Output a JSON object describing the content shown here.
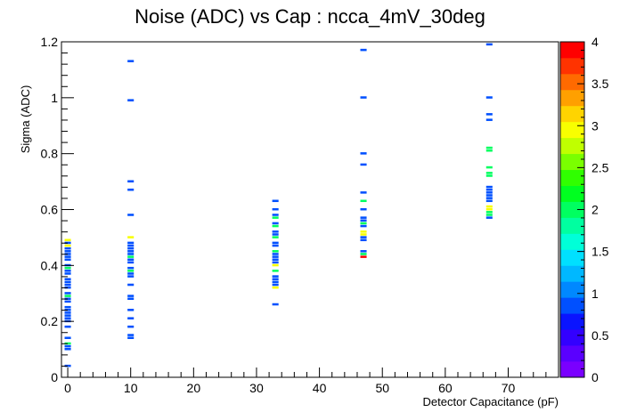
{
  "chart_data": {
    "type": "heatmap",
    "title": "Noise (ADC) vs Cap : ncca_4mV_30deg",
    "xlabel": "Detector Capacitance (pF)",
    "ylabel": "Sigma (ADC)",
    "xlim": [
      -1,
      78
    ],
    "ylim": [
      0,
      1.2
    ],
    "x_ticks": [
      0,
      10,
      20,
      30,
      40,
      50,
      60,
      70
    ],
    "x_tick_labels": [
      "0",
      "10",
      "20",
      "30",
      "40",
      "50",
      "60",
      "70"
    ],
    "y_ticks": [
      0,
      0.2,
      0.4,
      0.6,
      0.8,
      1.0,
      1.2
    ],
    "y_tick_labels": [
      "0",
      "0.2",
      "0.4",
      "0.6",
      "0.8",
      "1",
      "1.2"
    ],
    "bin_width_pF": 1,
    "bin_height_adc": 0.01,
    "zlim": [
      0,
      4
    ],
    "z_ticks": [
      0,
      0.5,
      1,
      1.5,
      2,
      2.5,
      3,
      3.5,
      4
    ],
    "z_tick_labels": [
      "0",
      "0.5",
      "1",
      "1.5",
      "2",
      "2.5",
      "3",
      "3.5",
      "4"
    ],
    "palette": [
      "#7a00ff",
      "#5a00ff",
      "#3300ff",
      "#0a14ff",
      "#0050ff",
      "#0088ff",
      "#00b8ff",
      "#00e0ff",
      "#00ffd8",
      "#00ffa0",
      "#00ff60",
      "#00ff20",
      "#30ff00",
      "#7aff00",
      "#c0ff00",
      "#f8ff00",
      "#ffd400",
      "#ffa000",
      "#ff6a00",
      "#ff3300",
      "#ff0000"
    ],
    "bins": [
      {
        "x": 0,
        "y": 0.04,
        "z": 1
      },
      {
        "x": 0,
        "y": 0.1,
        "z": 1
      },
      {
        "x": 0,
        "y": 0.11,
        "z": 1
      },
      {
        "x": 0,
        "y": 0.12,
        "z": 2
      },
      {
        "x": 0,
        "y": 0.14,
        "z": 1
      },
      {
        "x": 0,
        "y": 0.18,
        "z": 1
      },
      {
        "x": 0,
        "y": 0.2,
        "z": 1
      },
      {
        "x": 0,
        "y": 0.21,
        "z": 1
      },
      {
        "x": 0,
        "y": 0.22,
        "z": 1
      },
      {
        "x": 0,
        "y": 0.23,
        "z": 1
      },
      {
        "x": 0,
        "y": 0.24,
        "z": 1
      },
      {
        "x": 0,
        "y": 0.25,
        "z": 1
      },
      {
        "x": 0,
        "y": 0.27,
        "z": 1
      },
      {
        "x": 0,
        "y": 0.28,
        "z": 1
      },
      {
        "x": 0,
        "y": 0.29,
        "z": 2
      },
      {
        "x": 0,
        "y": 0.3,
        "z": 1
      },
      {
        "x": 0,
        "y": 0.32,
        "z": 1
      },
      {
        "x": 0,
        "y": 0.33,
        "z": 1
      },
      {
        "x": 0,
        "y": 0.34,
        "z": 1
      },
      {
        "x": 0,
        "y": 0.35,
        "z": 1
      },
      {
        "x": 0,
        "y": 0.37,
        "z": 1
      },
      {
        "x": 0,
        "y": 0.38,
        "z": 1
      },
      {
        "x": 0,
        "y": 0.39,
        "z": 2
      },
      {
        "x": 0,
        "y": 0.4,
        "z": 1
      },
      {
        "x": 0,
        "y": 0.42,
        "z": 1
      },
      {
        "x": 0,
        "y": 0.43,
        "z": 1
      },
      {
        "x": 0,
        "y": 0.44,
        "z": 1
      },
      {
        "x": 0,
        "y": 0.45,
        "z": 1
      },
      {
        "x": 0,
        "y": 0.46,
        "z": 1
      },
      {
        "x": 0,
        "y": 0.47,
        "z": 3
      },
      {
        "x": 0,
        "y": 0.48,
        "z": 1
      },
      {
        "x": 0,
        "y": 0.49,
        "z": 3
      },
      {
        "x": 10,
        "y": 0.14,
        "z": 1
      },
      {
        "x": 10,
        "y": 0.15,
        "z": 1
      },
      {
        "x": 10,
        "y": 0.18,
        "z": 1
      },
      {
        "x": 10,
        "y": 0.21,
        "z": 1
      },
      {
        "x": 10,
        "y": 0.24,
        "z": 1
      },
      {
        "x": 10,
        "y": 0.28,
        "z": 1
      },
      {
        "x": 10,
        "y": 0.29,
        "z": 1
      },
      {
        "x": 10,
        "y": 0.33,
        "z": 1
      },
      {
        "x": 10,
        "y": 0.36,
        "z": 1
      },
      {
        "x": 10,
        "y": 0.37,
        "z": 1
      },
      {
        "x": 10,
        "y": 0.38,
        "z": 2
      },
      {
        "x": 10,
        "y": 0.39,
        "z": 1
      },
      {
        "x": 10,
        "y": 0.41,
        "z": 1
      },
      {
        "x": 10,
        "y": 0.42,
        "z": 1
      },
      {
        "x": 10,
        "y": 0.43,
        "z": 2
      },
      {
        "x": 10,
        "y": 0.44,
        "z": 1
      },
      {
        "x": 10,
        "y": 0.45,
        "z": 1
      },
      {
        "x": 10,
        "y": 0.46,
        "z": 1
      },
      {
        "x": 10,
        "y": 0.47,
        "z": 1
      },
      {
        "x": 10,
        "y": 0.48,
        "z": 1
      },
      {
        "x": 10,
        "y": 0.5,
        "z": 3
      },
      {
        "x": 10,
        "y": 0.58,
        "z": 1
      },
      {
        "x": 10,
        "y": 0.67,
        "z": 1
      },
      {
        "x": 10,
        "y": 0.7,
        "z": 1
      },
      {
        "x": 10,
        "y": 0.99,
        "z": 1
      },
      {
        "x": 10,
        "y": 1.13,
        "z": 1
      },
      {
        "x": 33,
        "y": 0.26,
        "z": 1
      },
      {
        "x": 33,
        "y": 0.32,
        "z": 3
      },
      {
        "x": 33,
        "y": 0.33,
        "z": 1
      },
      {
        "x": 33,
        "y": 0.34,
        "z": 1
      },
      {
        "x": 33,
        "y": 0.35,
        "z": 1
      },
      {
        "x": 33,
        "y": 0.36,
        "z": 1
      },
      {
        "x": 33,
        "y": 0.38,
        "z": 2
      },
      {
        "x": 33,
        "y": 0.4,
        "z": 3
      },
      {
        "x": 33,
        "y": 0.41,
        "z": 1
      },
      {
        "x": 33,
        "y": 0.42,
        "z": 1
      },
      {
        "x": 33,
        "y": 0.43,
        "z": 1
      },
      {
        "x": 33,
        "y": 0.44,
        "z": 1
      },
      {
        "x": 33,
        "y": 0.45,
        "z": 2
      },
      {
        "x": 33,
        "y": 0.47,
        "z": 1
      },
      {
        "x": 33,
        "y": 0.48,
        "z": 1
      },
      {
        "x": 33,
        "y": 0.5,
        "z": 2
      },
      {
        "x": 33,
        "y": 0.51,
        "z": 1
      },
      {
        "x": 33,
        "y": 0.52,
        "z": 1
      },
      {
        "x": 33,
        "y": 0.54,
        "z": 2
      },
      {
        "x": 33,
        "y": 0.55,
        "z": 1
      },
      {
        "x": 33,
        "y": 0.57,
        "z": 2
      },
      {
        "x": 33,
        "y": 0.58,
        "z": 1
      },
      {
        "x": 33,
        "y": 0.6,
        "z": 1
      },
      {
        "x": 33,
        "y": 0.63,
        "z": 1
      },
      {
        "x": 47,
        "y": 0.43,
        "z": 4
      },
      {
        "x": 47,
        "y": 0.44,
        "z": 2
      },
      {
        "x": 47,
        "y": 0.45,
        "z": 1
      },
      {
        "x": 47,
        "y": 0.49,
        "z": 1
      },
      {
        "x": 47,
        "y": 0.5,
        "z": 1
      },
      {
        "x": 47,
        "y": 0.51,
        "z": 3
      },
      {
        "x": 47,
        "y": 0.52,
        "z": 3
      },
      {
        "x": 47,
        "y": 0.54,
        "z": 1
      },
      {
        "x": 47,
        "y": 0.55,
        "z": 2
      },
      {
        "x": 47,
        "y": 0.56,
        "z": 1
      },
      {
        "x": 47,
        "y": 0.57,
        "z": 1
      },
      {
        "x": 47,
        "y": 0.6,
        "z": 1
      },
      {
        "x": 47,
        "y": 0.63,
        "z": 2
      },
      {
        "x": 47,
        "y": 0.66,
        "z": 1
      },
      {
        "x": 47,
        "y": 0.76,
        "z": 1
      },
      {
        "x": 47,
        "y": 0.8,
        "z": 1
      },
      {
        "x": 47,
        "y": 1.0,
        "z": 1
      },
      {
        "x": 47,
        "y": 1.17,
        "z": 1
      },
      {
        "x": 67,
        "y": 0.57,
        "z": 1
      },
      {
        "x": 67,
        "y": 0.58,
        "z": 2
      },
      {
        "x": 67,
        "y": 0.59,
        "z": 2
      },
      {
        "x": 67,
        "y": 0.6,
        "z": 3
      },
      {
        "x": 67,
        "y": 0.61,
        "z": 3
      },
      {
        "x": 67,
        "y": 0.63,
        "z": 1
      },
      {
        "x": 67,
        "y": 0.64,
        "z": 1
      },
      {
        "x": 67,
        "y": 0.65,
        "z": 1
      },
      {
        "x": 67,
        "y": 0.66,
        "z": 1
      },
      {
        "x": 67,
        "y": 0.67,
        "z": 1
      },
      {
        "x": 67,
        "y": 0.68,
        "z": 1
      },
      {
        "x": 67,
        "y": 0.72,
        "z": 2
      },
      {
        "x": 67,
        "y": 0.73,
        "z": 2
      },
      {
        "x": 67,
        "y": 0.75,
        "z": 2
      },
      {
        "x": 67,
        "y": 0.81,
        "z": 2
      },
      {
        "x": 67,
        "y": 0.82,
        "z": 2
      },
      {
        "x": 67,
        "y": 0.92,
        "z": 1
      },
      {
        "x": 67,
        "y": 0.94,
        "z": 1
      },
      {
        "x": 67,
        "y": 1.0,
        "z": 1
      },
      {
        "x": 67,
        "y": 1.19,
        "z": 1
      }
    ]
  }
}
